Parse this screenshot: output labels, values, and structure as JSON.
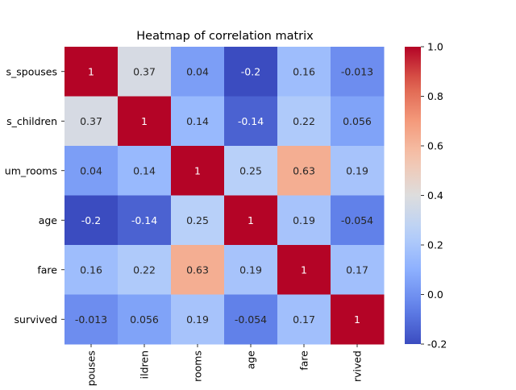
{
  "chart_data": {
    "type": "heatmap",
    "title": "Heatmap of correlation matrix",
    "row_tick_labels": [
      "s_spouses",
      "s_children",
      "um_rooms",
      "age",
      "fare",
      "survived"
    ],
    "col_tick_labels": [
      "pouses",
      "ildren",
      "rooms",
      "age",
      "fare",
      "rvived"
    ],
    "values": [
      [
        1,
        0.37,
        0.04,
        -0.2,
        0.16,
        -0.013
      ],
      [
        0.37,
        1,
        0.14,
        -0.14,
        0.22,
        0.056
      ],
      [
        0.04,
        0.14,
        1,
        0.25,
        0.63,
        0.19
      ],
      [
        -0.2,
        -0.14,
        0.25,
        1,
        0.19,
        -0.054
      ],
      [
        0.16,
        0.22,
        0.63,
        0.19,
        1,
        0.17
      ],
      [
        -0.013,
        0.056,
        0.19,
        -0.054,
        0.17,
        1
      ]
    ],
    "colormap": "coolwarm",
    "vmin": -0.2,
    "vmax": 1.0,
    "colorbar_ticks": [
      "1.0",
      "0.8",
      "0.6",
      "0.4",
      "0.2",
      "0.0",
      "-0.2"
    ],
    "annotations": true
  }
}
